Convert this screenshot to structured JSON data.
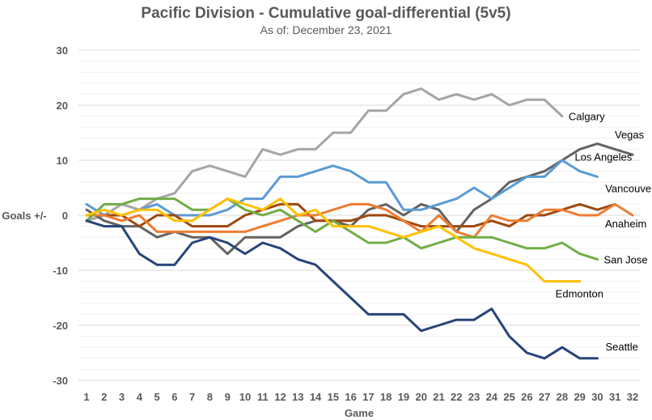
{
  "chart_data": {
    "type": "line",
    "title": "Pacific Division - Cumulative goal-differential (5v5)",
    "subtitle": "As of: December 23, 2021",
    "xlabel": "Game",
    "ylabel": "Goals +/-",
    "ylim": [
      -30,
      30
    ],
    "yticks": [
      30,
      20,
      10,
      0,
      -10,
      -20,
      -30
    ],
    "ytick_labels": [
      "30",
      "20",
      "10",
      "0",
      "-10",
      "-20",
      "-30"
    ],
    "minor_grid_step": 2,
    "grid": true,
    "legend": "direct-labels-right",
    "x": [
      1,
      2,
      3,
      4,
      5,
      6,
      7,
      8,
      9,
      10,
      11,
      12,
      13,
      14,
      15,
      16,
      17,
      18,
      19,
      20,
      21,
      22,
      23,
      24,
      25,
      26,
      27,
      28,
      29,
      30,
      31,
      32
    ],
    "categories": [
      "1",
      "2",
      "3",
      "4",
      "5",
      "6",
      "7",
      "8",
      "9",
      "10",
      "11",
      "12",
      "13",
      "14",
      "15",
      "16",
      "17",
      "18",
      "19",
      "20",
      "21",
      "22",
      "23",
      "24",
      "25",
      "26",
      "27",
      "28",
      "29",
      "30",
      "31",
      "32"
    ],
    "series": [
      {
        "name": "Calgary",
        "color": "#a5a5a5",
        "values": [
          -1,
          0,
          2,
          1,
          3,
          4,
          8,
          9,
          8,
          7,
          12,
          11,
          12,
          12,
          15,
          15,
          19,
          19,
          22,
          23,
          21,
          22,
          21,
          22,
          20,
          21,
          21,
          18,
          null,
          null,
          null,
          null
        ]
      },
      {
        "name": "Vegas",
        "color": "#636363",
        "values": [
          1,
          -1,
          -2,
          -2,
          -4,
          -3,
          -4,
          -4,
          -7,
          -4,
          -4,
          -4,
          -2,
          -1,
          -1,
          -2,
          1,
          2,
          0,
          2,
          1,
          -3,
          1,
          3,
          6,
          7,
          8,
          10,
          12,
          13,
          12,
          11
        ]
      },
      {
        "name": "Los Angeles",
        "color": "#5b9bd5",
        "values": [
          2,
          0,
          0,
          1,
          2,
          0,
          0,
          0,
          1,
          3,
          3,
          7,
          7,
          8,
          9,
          8,
          6,
          6,
          1,
          1,
          2,
          3,
          5,
          3,
          5,
          7,
          7,
          10,
          8,
          7,
          null,
          null
        ]
      },
      {
        "name": "Vancouver",
        "color": "#9e480e",
        "values": [
          0,
          0,
          0,
          -2,
          0,
          0,
          -2,
          -2,
          -2,
          0,
          1,
          2,
          2,
          -1,
          null,
          null,
          null,
          null,
          null,
          null,
          null,
          null,
          null,
          null,
          null,
          null,
          null,
          null,
          null,
          null,
          null,
          null
        ],
        "values_full": [
          0,
          0,
          0,
          -2,
          0,
          0,
          -2,
          -2,
          -2,
          0,
          1,
          2,
          2,
          -1,
          -1,
          -1,
          0,
          0,
          -1,
          -2,
          -2,
          -2,
          -2,
          -1,
          -2,
          0,
          0,
          1,
          2,
          1,
          2,
          null
        ]
      },
      {
        "name": "Anaheim",
        "color": "#ed7d31",
        "values": [
          0,
          0,
          -1,
          0,
          -3,
          -3,
          -3,
          -3,
          -3,
          -3,
          -2,
          -1,
          0,
          0,
          1,
          2,
          2,
          1,
          -1,
          -3,
          0,
          -3,
          -4,
          0,
          -1,
          -1,
          1,
          1,
          0,
          0,
          2,
          0
        ]
      },
      {
        "name": "San Jose",
        "color": "#70ad47",
        "values": [
          -1,
          2,
          2,
          3,
          3,
          3,
          1,
          1,
          3,
          1,
          0,
          1,
          -1,
          -3,
          -1,
          -3,
          -5,
          -5,
          -4,
          -6,
          -5,
          -4,
          -4,
          -4,
          -5,
          -6,
          -6,
          -5,
          -7,
          -8,
          null,
          null
        ]
      },
      {
        "name": "Edmonton",
        "color": "#ffc000",
        "values": [
          0,
          1,
          0,
          1,
          1,
          -1,
          -1,
          1,
          3,
          2,
          1,
          3,
          0,
          1,
          -2,
          -2,
          -2,
          -3,
          -4,
          -3,
          -2,
          -4,
          -6,
          -7,
          -8,
          -9,
          -12,
          -12,
          -12,
          null,
          null,
          null
        ]
      },
      {
        "name": "Seattle",
        "color": "#264478",
        "values": [
          -1,
          -2,
          -2,
          -7,
          -9,
          -9,
          -5,
          -4,
          -5,
          -7,
          -5,
          -6,
          -8,
          -9,
          -12,
          -15,
          -18,
          -18,
          -18,
          -21,
          -20,
          -19,
          -19,
          -17,
          -22,
          -25,
          -26,
          -24,
          -26,
          -26,
          null,
          null
        ]
      }
    ]
  }
}
